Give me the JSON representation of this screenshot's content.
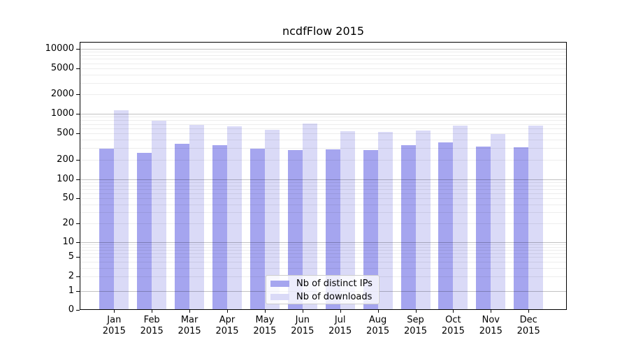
{
  "title": "ncdfFlow 2015",
  "legend": {
    "items": [
      {
        "label": "Nb of distinct IPs"
      },
      {
        "label": "Nb of downloads"
      }
    ]
  },
  "colors": {
    "distinct_ips": "#a5a5ef",
    "downloads": "#dadaf7",
    "axis": "#000000",
    "major_grid": "#bdbdbd",
    "minor_grid": "#ececec",
    "legend_border": "#cccccc"
  },
  "chart_data": {
    "type": "bar",
    "title": "ncdfFlow 2015",
    "categories": [
      "Jan",
      "Feb",
      "Mar",
      "Apr",
      "May",
      "Jun",
      "Jul",
      "Aug",
      "Sep",
      "Oct",
      "Nov",
      "Dec"
    ],
    "year_label": "2015",
    "series": [
      {
        "name": "Nb of distinct IPs",
        "color": "#a5a5ef",
        "values": [
          295,
          255,
          350,
          330,
          295,
          280,
          290,
          280,
          330,
          370,
          320,
          310
        ]
      },
      {
        "name": "Nb of downloads",
        "color": "#dadaf7",
        "values": [
          1120,
          780,
          675,
          650,
          570,
          715,
          540,
          525,
          550,
          660,
          495,
          660
        ]
      }
    ],
    "xlabel": "",
    "ylabel": "",
    "yscale": "symlog",
    "y_ticks": [
      0,
      1,
      2,
      5,
      10,
      20,
      50,
      100,
      200,
      500,
      1000,
      2000,
      5000,
      10000
    ],
    "ylim": [
      0,
      13000
    ],
    "grid": "horizontal major and minor, log decades",
    "legend_position": "lower center"
  }
}
